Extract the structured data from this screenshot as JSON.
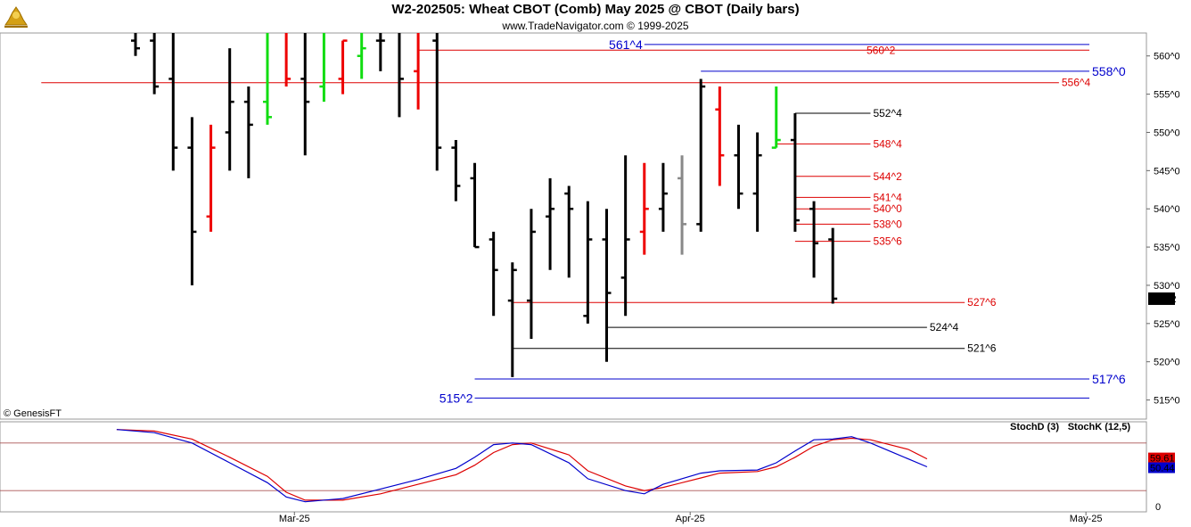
{
  "chart_data": {
    "type": "ohlc",
    "title": "W2-202505:  Wheat CBOT (Comb) May 2025 @ CBOT  (Daily bars)",
    "subtitle": "www.TradeNavigator.com © 1999-2025",
    "copyright": "© GenesisFT",
    "price_axis": {
      "min": 512.5,
      "max": 563,
      "ticks": [
        {
          "v": 515,
          "label": "515^0"
        },
        {
          "v": 520,
          "label": "520^0"
        },
        {
          "v": 525,
          "label": "525^0"
        },
        {
          "v": 530,
          "label": "530^0"
        },
        {
          "v": 535,
          "label": "535^0"
        },
        {
          "v": 540,
          "label": "540^0"
        },
        {
          "v": 545,
          "label": "545^0"
        },
        {
          "v": 550,
          "label": "550^0"
        },
        {
          "v": 555,
          "label": "555^0"
        },
        {
          "v": 560,
          "label": "560^0"
        }
      ]
    },
    "last_price": {
      "v": 528.25,
      "label": "528^2"
    },
    "x_labels": [
      {
        "bar": 9,
        "label": "Mar-25"
      },
      {
        "bar": 30,
        "label": "Apr-25"
      },
      {
        "bar": 51,
        "label": "May-25"
      }
    ],
    "bars": [
      {
        "o": 562,
        "h": 563,
        "l": 560,
        "c": 561,
        "col": "k"
      },
      {
        "o": 562,
        "h": 563,
        "l": 555,
        "c": 556,
        "col": "k"
      },
      {
        "o": 557,
        "h": 563,
        "l": 545,
        "c": 548,
        "col": "k"
      },
      {
        "o": 548,
        "h": 552,
        "l": 530,
        "c": 537,
        "col": "k"
      },
      {
        "o": 539,
        "h": 551,
        "l": 537,
        "c": 548,
        "col": "r"
      },
      {
        "o": 550,
        "h": 561,
        "l": 545,
        "c": 554,
        "col": "k"
      },
      {
        "o": 554,
        "h": 556,
        "l": 544,
        "c": 551,
        "col": "k"
      },
      {
        "o": 554,
        "h": 563,
        "l": 551,
        "c": 552,
        "col": "g"
      },
      {
        "o": 563,
        "h": 563,
        "l": 556,
        "c": 557,
        "col": "r"
      },
      {
        "o": 557,
        "h": 563,
        "l": 547,
        "c": 554,
        "col": "k"
      },
      {
        "o": 556,
        "h": 563,
        "l": 554,
        "c": 563,
        "col": "g"
      },
      {
        "o": 557,
        "h": 562,
        "l": 555,
        "c": 562,
        "col": "r"
      },
      {
        "o": 560,
        "h": 563,
        "l": 557,
        "c": 561,
        "col": "g"
      },
      {
        "o": 562,
        "h": 563,
        "l": 558,
        "c": 562,
        "col": "k"
      },
      {
        "o": 563,
        "h": 563,
        "l": 552,
        "c": 557,
        "col": "k"
      },
      {
        "o": 558,
        "h": 563,
        "l": 553,
        "c": 563,
        "col": "r"
      },
      {
        "o": 562,
        "h": 563,
        "l": 545,
        "c": 548,
        "col": "k"
      },
      {
        "o": 548,
        "h": 549,
        "l": 541,
        "c": 543,
        "col": "k"
      },
      {
        "o": 544,
        "h": 546,
        "l": 535,
        "c": 535,
        "col": "k"
      },
      {
        "o": 536,
        "h": 537,
        "l": 526,
        "c": 532,
        "col": "k"
      },
      {
        "o": 528,
        "h": 533,
        "l": 518,
        "c": 532,
        "col": "k"
      },
      {
        "o": 528,
        "h": 540,
        "l": 523,
        "c": 537,
        "col": "k"
      },
      {
        "o": 539,
        "h": 544,
        "l": 532,
        "c": 540,
        "col": "k"
      },
      {
        "o": 542,
        "h": 543,
        "l": 531,
        "c": 540,
        "col": "k"
      },
      {
        "o": 526,
        "h": 541,
        "l": 525,
        "c": 536,
        "col": "k"
      },
      {
        "o": 536,
        "h": 540,
        "l": 520,
        "c": 529,
        "col": "k"
      },
      {
        "o": 531,
        "h": 547,
        "l": 526,
        "c": 536,
        "col": "k"
      },
      {
        "o": 537,
        "h": 546,
        "l": 534,
        "c": 540,
        "col": "r"
      },
      {
        "o": 540,
        "h": 546,
        "l": 537,
        "c": 542,
        "col": "k"
      },
      {
        "o": 544,
        "h": 547,
        "l": 534,
        "c": 538,
        "col": "gray"
      },
      {
        "o": 538,
        "h": 557,
        "l": 537,
        "c": 556,
        "col": "k"
      },
      {
        "o": 553,
        "h": 556,
        "l": 543,
        "c": 547,
        "col": "r"
      },
      {
        "o": 547,
        "h": 551,
        "l": 540,
        "c": 542,
        "col": "k"
      },
      {
        "o": 542,
        "h": 550,
        "l": 537,
        "c": 547,
        "col": "k"
      },
      {
        "o": 548,
        "h": 556,
        "l": 548,
        "c": 549,
        "col": "g"
      },
      {
        "o": 549,
        "h": 552.5,
        "l": 537,
        "c": 538.5,
        "col": "k"
      },
      {
        "o": 540,
        "h": 541,
        "l": 531,
        "c": 535.5,
        "col": "k"
      },
      {
        "o": 536,
        "h": 537.5,
        "l": 527.6,
        "c": 528.25,
        "col": "k"
      }
    ],
    "levels": [
      {
        "v": 561.5,
        "label": "561^4",
        "color": "#0000cc",
        "big": true,
        "label_side": "left",
        "b0": 27,
        "b1": 58
      },
      {
        "v": 560.75,
        "label": "560^2",
        "color": "#dd0000",
        "big": false,
        "label_side": "mid",
        "b0": 15,
        "b1": 51
      },
      {
        "v": 558.0,
        "label": "558^0",
        "color": "#0000cc",
        "big": true,
        "label_side": "right",
        "b0": 30,
        "b1": 58
      },
      {
        "v": 556.5,
        "label": "556^4",
        "color": "#dd0000",
        "big": false,
        "label_side": "right",
        "b0": -5,
        "b1": 49
      },
      {
        "v": 552.5,
        "label": "552^4",
        "color": "#000000",
        "big": false,
        "label_side": "right",
        "b0": 35,
        "b1": 39
      },
      {
        "v": 548.5,
        "label": "548^4",
        "color": "#dd0000",
        "big": false,
        "label_side": "right",
        "b0": 34,
        "b1": 39
      },
      {
        "v": 544.25,
        "label": "544^2",
        "color": "#dd0000",
        "big": false,
        "label_side": "right",
        "b0": 35,
        "b1": 39
      },
      {
        "v": 541.5,
        "label": "541^4",
        "color": "#dd0000",
        "big": false,
        "label_side": "right",
        "b0": 35,
        "b1": 39
      },
      {
        "v": 540.0,
        "label": "540^0",
        "color": "#dd0000",
        "big": false,
        "label_side": "right",
        "b0": 35,
        "b1": 39
      },
      {
        "v": 538.0,
        "label": "538^0",
        "color": "#dd0000",
        "big": false,
        "label_side": "right",
        "b0": 35,
        "b1": 39
      },
      {
        "v": 535.75,
        "label": "535^6",
        "color": "#dd0000",
        "big": false,
        "label_side": "right",
        "b0": 35,
        "b1": 39
      },
      {
        "v": 527.75,
        "label": "527^6",
        "color": "#dd0000",
        "big": false,
        "label_side": "right",
        "b0": 20,
        "b1": 44
      },
      {
        "v": 524.5,
        "label": "524^4",
        "color": "#000000",
        "big": false,
        "label_side": "right",
        "b0": 25,
        "b1": 42
      },
      {
        "v": 521.75,
        "label": "521^6",
        "color": "#000000",
        "big": false,
        "label_side": "right",
        "b0": 20,
        "b1": 44
      },
      {
        "v": 517.75,
        "label": "517^6",
        "color": "#0000cc",
        "big": true,
        "label_side": "right",
        "b0": 18,
        "b1": 58
      },
      {
        "v": 515.25,
        "label": "515^2",
        "color": "#0000cc",
        "big": true,
        "label_side": "left",
        "b0": 18,
        "b1": 58
      }
    ],
    "stochastic": {
      "labels": {
        "d": "StochD (3)",
        "k": "StochK (12,5)"
      },
      "colors": {
        "d": "#dd0000",
        "k": "#0000cc"
      },
      "levels": [
        80,
        20
      ],
      "axis_label": "0",
      "d_last": "59.61",
      "k_last": "50.44",
      "k": [
        [
          -1,
          97
        ],
        [
          1,
          93
        ],
        [
          3,
          80
        ],
        [
          5,
          55
        ],
        [
          7,
          30
        ],
        [
          8,
          12
        ],
        [
          9,
          6
        ],
        [
          11,
          10
        ],
        [
          13,
          22
        ],
        [
          15,
          34
        ],
        [
          17,
          48
        ],
        [
          18,
          62
        ],
        [
          19,
          78
        ],
        [
          20,
          80
        ],
        [
          21,
          78
        ],
        [
          23,
          55
        ],
        [
          24,
          35
        ],
        [
          26,
          20
        ],
        [
          27,
          16
        ],
        [
          28,
          28
        ],
        [
          30,
          42
        ],
        [
          31,
          45
        ],
        [
          33,
          46
        ],
        [
          34,
          55
        ],
        [
          35,
          70
        ],
        [
          36,
          84
        ],
        [
          37,
          85
        ],
        [
          38,
          88
        ],
        [
          39,
          80
        ],
        [
          40,
          70
        ],
        [
          41,
          60
        ],
        [
          42,
          50
        ]
      ],
      "d": [
        [
          -1,
          97
        ],
        [
          1,
          95
        ],
        [
          3,
          85
        ],
        [
          5,
          62
        ],
        [
          7,
          38
        ],
        [
          8,
          18
        ],
        [
          9,
          8
        ],
        [
          11,
          8
        ],
        [
          13,
          16
        ],
        [
          15,
          28
        ],
        [
          17,
          40
        ],
        [
          18,
          52
        ],
        [
          19,
          68
        ],
        [
          20,
          78
        ],
        [
          21,
          80
        ],
        [
          23,
          65
        ],
        [
          24,
          45
        ],
        [
          26,
          26
        ],
        [
          27,
          20
        ],
        [
          28,
          24
        ],
        [
          30,
          36
        ],
        [
          31,
          42
        ],
        [
          33,
          44
        ],
        [
          34,
          50
        ],
        [
          35,
          62
        ],
        [
          36,
          76
        ],
        [
          37,
          84
        ],
        [
          38,
          86
        ],
        [
          39,
          84
        ],
        [
          40,
          78
        ],
        [
          41,
          72
        ],
        [
          42,
          60
        ]
      ]
    }
  }
}
